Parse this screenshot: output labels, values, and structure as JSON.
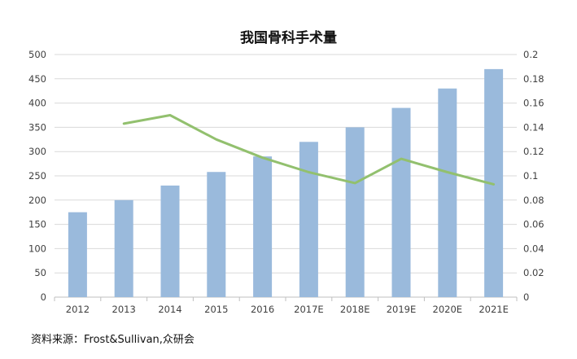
{
  "chart_data": {
    "type": "bar",
    "title": "我国骨科手术量",
    "categories": [
      "2012",
      "2013",
      "2014",
      "2015",
      "2016",
      "2017E",
      "2018E",
      "2019E",
      "2020E",
      "2021E"
    ],
    "series": [
      {
        "type": "bar",
        "axis": "left",
        "color": "#9ABADC",
        "values": [
          175,
          200,
          230,
          258,
          290,
          320,
          350,
          390,
          430,
          470
        ]
      },
      {
        "type": "line",
        "axis": "right",
        "color": "#92C06E",
        "values": [
          null,
          0.143,
          0.15,
          0.13,
          0.115,
          0.103,
          0.094,
          0.114,
          0.103,
          0.093
        ]
      }
    ],
    "y_left": {
      "min": 0,
      "max": 500,
      "step": 50,
      "ticks": [
        "0",
        "50",
        "100",
        "150",
        "200",
        "250",
        "300",
        "350",
        "400",
        "450",
        "500"
      ]
    },
    "y_right": {
      "min": 0,
      "max": 0.2,
      "step": 0.02,
      "ticks": [
        "0",
        "0.02",
        "0.04",
        "0.06",
        "0.08",
        "0.1",
        "0.12",
        "0.14",
        "0.16",
        "0.18",
        "0.2"
      ]
    },
    "grid": true,
    "legend": "none",
    "source": "资料来源：Frost&Sullivan,众研会"
  }
}
